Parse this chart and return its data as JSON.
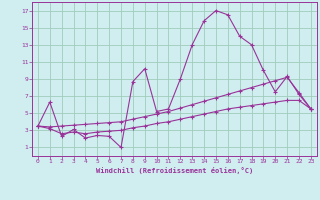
{
  "xlabel": "Windchill (Refroidissement éolien,°C)",
  "xlim": [
    -0.5,
    23.5
  ],
  "ylim": [
    0,
    18
  ],
  "xticks": [
    0,
    1,
    2,
    3,
    4,
    5,
    6,
    7,
    8,
    9,
    10,
    11,
    12,
    13,
    14,
    15,
    16,
    17,
    18,
    19,
    20,
    21,
    22,
    23
  ],
  "yticks": [
    1,
    3,
    5,
    7,
    9,
    11,
    13,
    15,
    17
  ],
  "background_color": "#d0eef0",
  "grid_color": "#a0ccbb",
  "line_color": "#993399",
  "line1_x": [
    0,
    1,
    2,
    3,
    4,
    5,
    6,
    7,
    8,
    9,
    10,
    11,
    12,
    13,
    14,
    15,
    16,
    17,
    18,
    19,
    20,
    21,
    22,
    23
  ],
  "line1_y": [
    3.5,
    6.3,
    2.3,
    3.1,
    2.1,
    2.4,
    2.3,
    1.0,
    8.7,
    10.2,
    5.2,
    5.5,
    9.0,
    13.0,
    15.8,
    17.0,
    16.5,
    14.0,
    13.0,
    10.0,
    7.5,
    9.3,
    7.2,
    5.5
  ],
  "line2_x": [
    0,
    1,
    2,
    3,
    4,
    5,
    6,
    7,
    8,
    9,
    10,
    11,
    12,
    13,
    14,
    15,
    16,
    17,
    18,
    19,
    20,
    21,
    22,
    23
  ],
  "line2_y": [
    3.5,
    3.4,
    3.5,
    3.6,
    3.7,
    3.8,
    3.9,
    4.0,
    4.3,
    4.6,
    4.9,
    5.2,
    5.6,
    6.0,
    6.4,
    6.8,
    7.2,
    7.6,
    8.0,
    8.4,
    8.8,
    9.2,
    7.4,
    5.5
  ],
  "line3_x": [
    0,
    1,
    2,
    3,
    4,
    5,
    6,
    7,
    8,
    9,
    10,
    11,
    12,
    13,
    14,
    15,
    16,
    17,
    18,
    19,
    20,
    21,
    22,
    23
  ],
  "line3_y": [
    3.5,
    3.2,
    2.6,
    2.8,
    2.6,
    2.8,
    2.9,
    3.0,
    3.3,
    3.5,
    3.8,
    4.0,
    4.3,
    4.6,
    4.9,
    5.2,
    5.5,
    5.7,
    5.9,
    6.1,
    6.3,
    6.5,
    6.5,
    5.5
  ]
}
